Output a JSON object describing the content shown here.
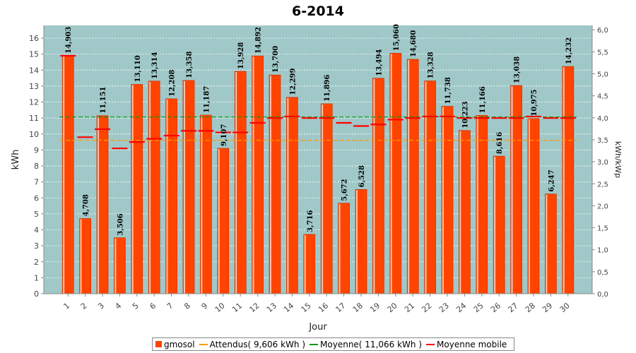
{
  "chart_data": {
    "type": "bar",
    "title": "6-2014",
    "xlabel": "Jour",
    "ylabel": "kWh",
    "y2label": "kWh/kWp",
    "ylim": [
      0,
      16.8
    ],
    "y2lim": [
      0,
      6.1
    ],
    "yticks": [
      "0",
      "1",
      "2",
      "3",
      "4",
      "5",
      "6",
      "7",
      "8",
      "9",
      "10",
      "11",
      "12",
      "13",
      "14",
      "15",
      "16"
    ],
    "y2ticks": [
      "0,0",
      "0,5",
      "1,0",
      "1,5",
      "2,0",
      "2,5",
      "3,0",
      "3,5",
      "4,0",
      "4,5",
      "5,0",
      "5,5",
      "6,0"
    ],
    "categories": [
      "1",
      "2",
      "3",
      "4",
      "5",
      "6",
      "7",
      "8",
      "9",
      "10",
      "11",
      "12",
      "13",
      "14",
      "15",
      "16",
      "17",
      "18",
      "19",
      "20",
      "21",
      "22",
      "23",
      "24",
      "25",
      "26",
      "27",
      "28",
      "29",
      "30"
    ],
    "series": [
      {
        "name": "gmosol",
        "color": "#ff4400",
        "values": [
          14.903,
          4.708,
          11.151,
          3.506,
          13.11,
          13.314,
          12.208,
          13.358,
          11.187,
          9.107,
          13.928,
          14.892,
          13.7,
          12.299,
          3.716,
          11.896,
          5.672,
          6.528,
          13.494,
          15.06,
          14.68,
          13.328,
          11.738,
          10.223,
          11.166,
          8.616,
          13.038,
          10.975,
          6.247,
          14.232
        ],
        "labels": [
          "14,903",
          "4,708",
          "11,151",
          "3,506",
          "13,110",
          "13,314",
          "12,208",
          "13,358",
          "11,187",
          "9,107",
          "13,928",
          "14,892",
          "13,700",
          "12,299",
          "3,716",
          "11,896",
          "5,672",
          "6,528",
          "13,494",
          "15,060",
          "14,680",
          "13,328",
          "11,738",
          "10,223",
          "11,166",
          "8,616",
          "13,038",
          "10,975",
          "6,247",
          "14,232"
        ]
      },
      {
        "name": "Attendus( 9,606 kWh )",
        "color": "#ff9900",
        "value": 9.606
      },
      {
        "name": "Moyenne( 11,066 kWh )",
        "color": "#009900",
        "value": 11.066
      },
      {
        "name": "Moyenne mobile",
        "color": "#ff0000",
        "values": [
          14.9,
          9.8,
          10.3,
          9.1,
          9.5,
          9.7,
          9.9,
          10.2,
          10.2,
          10.1,
          10.1,
          10.7,
          11.0,
          11.1,
          11.0,
          11.0,
          10.7,
          10.5,
          10.6,
          10.9,
          11.0,
          11.1,
          11.1,
          11.0,
          11.0,
          11.0,
          11.0,
          11.1,
          11.0,
          11.0
        ]
      }
    ],
    "grid": true,
    "legend": "bottom"
  }
}
